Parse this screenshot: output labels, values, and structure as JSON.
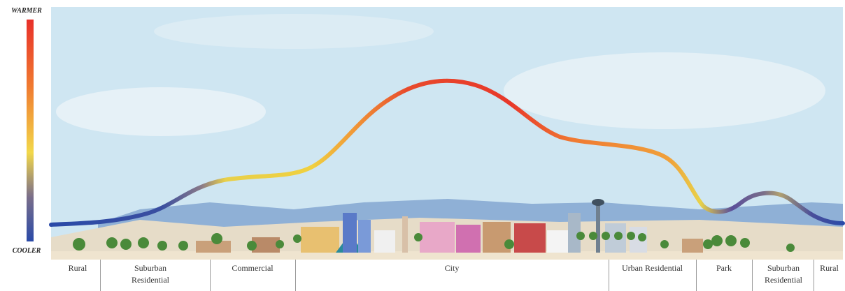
{
  "scale": {
    "top": "WARMER",
    "bottom": "COOLER"
  },
  "zones": [
    "Rural",
    "Suburban Residential",
    "Commercial",
    "City",
    "Urban Residential",
    "Park",
    "Suburban Residential",
    "Rural"
  ]
}
